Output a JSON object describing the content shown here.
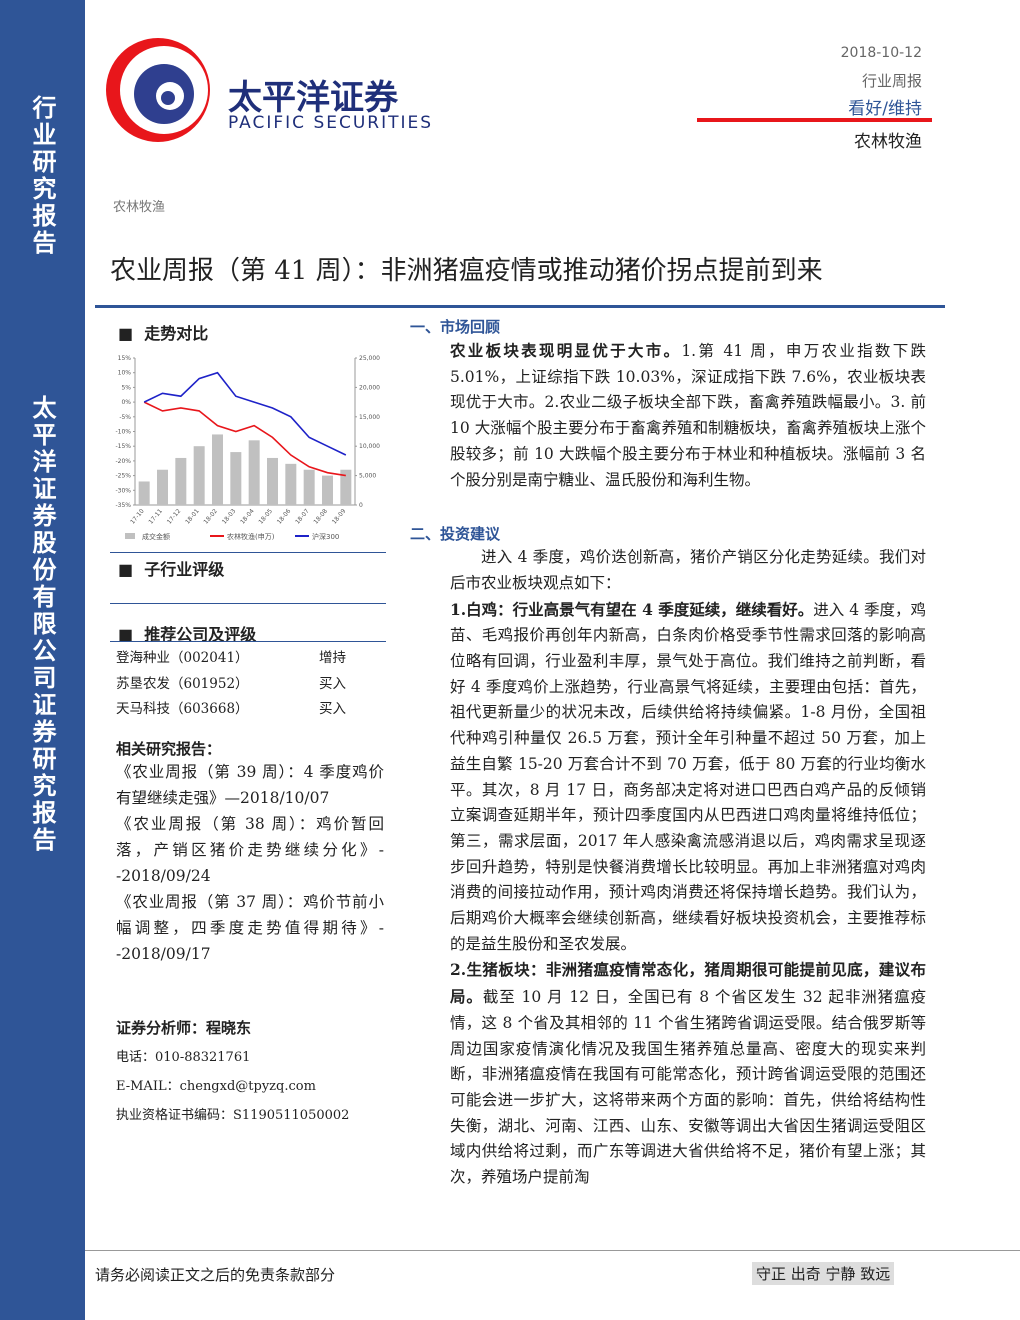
{
  "sidebar": {
    "top": "行业研究报告",
    "bottom": "太平洋证券股份有限公司证券研究报告"
  },
  "header": {
    "logo_cn": "太平洋证券",
    "logo_en": "PACIFIC SECURITIES",
    "date": "2018-10-12",
    "report_type": "行业周报",
    "rating": "看好/维持",
    "industry": "农林牧渔"
  },
  "category": "农林牧渔",
  "title": "农业周报（第 41 周）：非洲猪瘟疫情或推动猪价拐点提前到来",
  "left": {
    "trend_heading": "走势对比",
    "chart_data": {
      "type": "combo",
      "categories": [
        "17-10",
        "17-11",
        "17-12",
        "18-01",
        "18-02",
        "18-03",
        "18-04",
        "18-05",
        "18-06",
        "18-07",
        "18-08",
        "18-09"
      ],
      "series": [
        {
          "name": "成交金额",
          "color": "#c0c0c0",
          "kind": "bar",
          "axis": "y2",
          "values": [
            4000,
            6000,
            8000,
            10000,
            12000,
            9000,
            11000,
            8000,
            7000,
            6000,
            5000,
            6000
          ]
        },
        {
          "name": "农林牧渔(申万)",
          "color": "#e8161b",
          "kind": "line",
          "values": [
            0,
            -3,
            -2,
            -3,
            -8,
            -10,
            -8,
            -12,
            -18,
            -22,
            -24,
            -25
          ]
        },
        {
          "name": "沪深300",
          "color": "#1e22c8",
          "kind": "line",
          "values": [
            0,
            3,
            2,
            8,
            10,
            2,
            0,
            -2,
            -5,
            -12,
            -15,
            -18
          ]
        }
      ],
      "ylim": [
        -35,
        15
      ],
      "yticks": [
        {
          "value": 15,
          "label": "15%"
        },
        {
          "value": 10,
          "label": "10%"
        },
        {
          "value": 5,
          "label": "5%"
        },
        {
          "value": 0,
          "label": "0%"
        },
        {
          "value": -5,
          "label": "-5%"
        },
        {
          "value": -10,
          "label": "-10%"
        },
        {
          "value": -15,
          "label": "-15%"
        },
        {
          "value": -20,
          "label": "-20%"
        },
        {
          "value": -25,
          "label": "-25%"
        },
        {
          "value": -30,
          "label": "-30%"
        },
        {
          "value": -35,
          "label": "-35%"
        }
      ],
      "y2lim": [
        0,
        25000
      ],
      "y2ticks": [
        {
          "value": 25000,
          "label": "25,000"
        },
        {
          "value": 20000,
          "label": "20,000"
        },
        {
          "value": 15000,
          "label": "15,000"
        },
        {
          "value": 10000,
          "label": "10,000"
        },
        {
          "value": 5000,
          "label": "5,000"
        },
        0
      ]
    },
    "sub_heading": "子行业评级",
    "rec_heading": "推荐公司及评级",
    "companies": [
      [
        "登海种业（002041）",
        "增持"
      ],
      [
        "苏垦农发（601952）",
        "买入"
      ],
      [
        "天马科技（603668）",
        "买入"
      ]
    ],
    "related_title": "相关研究报告：",
    "related": [
      "《农业周报（第 39 周）：4 季度鸡价有望继续走强》—2018/10/07",
      "《农业周报（第 38 周）：鸡价暂回落，产销区猪价走势继续分化》--2018/09/24",
      "《农业周报（第 37 周）：鸡价节前小幅调整，四季度走势值得期待》--2018/09/17"
    ],
    "analyst": "证券分析师：程晓东",
    "phone": "电话：010-88321761",
    "email": "E-MAIL：chengxd@tpyzq.com",
    "cert": "执业资格证书编码：S1190511050002"
  },
  "right": {
    "s1": "一、市场回顾",
    "p1": {
      "bold": "农业板块表现明显优于大市。",
      "text": "1.第 41 周，申万农业指数下跌 5.01%，上证综指下跌 10.03%，深证成指下跌 7.6%，农业板块表现优于大市。2.农业二级子板块全部下跌，畜禽养殖跌幅最小。3. 前 10 大涨幅个股主要分布于畜禽养殖和制糖板块，畜禽养殖板块上涨个股较多；前 10 大跌幅个股主要分布于林业和种植板块。涨幅前 3 名个股分别是南宁糖业、温氏股份和海利生物。"
    },
    "s2": "二、投资建议",
    "p2": "进入 4 季度，鸡价迭创新高，猪价产销区分化走势延续。我们对后市农业板块观点如下：",
    "p3": {
      "bold": "1.白鸡：行业高景气有望在 4 季度延续，继续看好。",
      "text": "进入 4 季度，鸡苗、毛鸡报价再创年内新高，白条肉价格受季节性需求回落的影响高位略有回调，行业盈利丰厚，景气处于高位。我们维持之前判断，看好 4 季度鸡价上涨趋势，行业高景气将延续，主要理由包括：首先，祖代更新量少的状况未改，后续供给将持续偏紧。1-8 月份，全国祖代种鸡引种量仅 26.5 万套，预计全年引种量不超过 50 万套，加上益生自繁 15-20 万套合计不到 70 万套，低于 80 万套的行业均衡水平。其次，8 月 17 日，商务部决定将对进口巴西白鸡产品的反倾销立案调查延期半年，预计四季度国内从巴西进口鸡肉量将维持低位；第三，需求层面，2017 年人感染禽流感消退以后，鸡肉需求呈现逐步回升趋势，特别是快餐消费增长比较明显。再加上非洲猪瘟对鸡肉消费的间接拉动作用，预计鸡肉消费还将保持增长趋势。我们认为，后期鸡价大概率会继续创新高，继续看好板块投资机会，主要推荐标的是益生股份和圣农发展。"
    },
    "p4": {
      "bold": "2.生猪板块：非洲猪瘟疫情常态化，猪周期很可能提前见底，建议布局。",
      "text": "截至 10 月 12 日，全国已有 8 个省区发生 32 起非洲猪瘟疫情，这 8 个省及其相邻的 11 个省生猪跨省调运受限。结合俄罗斯等周边国家疫情演化情况及我国生猪养殖总量高、密度大的现实来判断，非洲猪瘟疫情在我国有可能常态化，预计跨省调运受限的范围还可能会进一步扩大，这将带来两个方面的影响：首先，供给将结构性失衡，湖北、河南、江西、山东、安徽等调出大省因生猪调运受阻区域内供给将过剩，而广东等调进大省供给将不足，猪价有望上涨；其次，养殖场户提前淘"
    }
  },
  "footer": {
    "disclaimer": "请务必阅读正文之后的免责条款部分",
    "motto": "守正 出奇 宁静 致远"
  }
}
